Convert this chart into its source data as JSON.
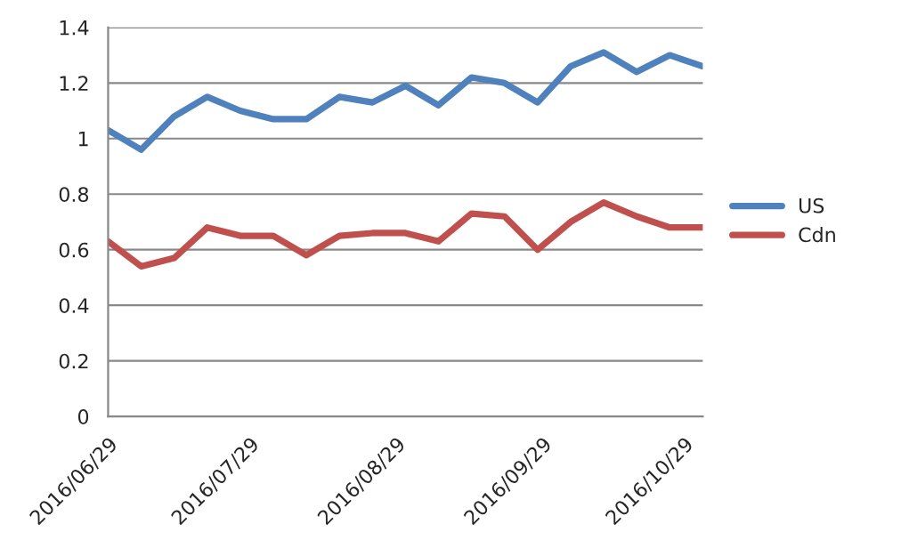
{
  "chart_data": {
    "type": "line",
    "x": [
      "2016-06-29",
      "2016-07-06",
      "2016-07-13",
      "2016-07-20",
      "2016-07-27",
      "2016-08-03",
      "2016-08-10",
      "2016-08-17",
      "2016-08-24",
      "2016-08-31",
      "2016-09-07",
      "2016-09-14",
      "2016-09-21",
      "2016-09-28",
      "2016-10-05",
      "2016-10-12",
      "2016-10-19",
      "2016-10-26",
      "2016-11-02"
    ],
    "series": [
      {
        "name": "US",
        "color": "#4f81bd",
        "values": [
          1.03,
          0.96,
          1.08,
          1.15,
          1.1,
          1.07,
          1.07,
          1.15,
          1.13,
          1.19,
          1.12,
          1.22,
          1.2,
          1.13,
          1.26,
          1.31,
          1.24,
          1.3,
          1.26
        ]
      },
      {
        "name": "Cdn",
        "color": "#c0504d",
        "values": [
          0.63,
          0.54,
          0.57,
          0.68,
          0.65,
          0.65,
          0.58,
          0.65,
          0.66,
          0.66,
          0.63,
          0.73,
          0.72,
          0.6,
          0.7,
          0.77,
          0.72,
          0.68,
          0.68
        ]
      }
    ],
    "xlim": [
      "2016-06-29",
      "2016-11-02"
    ],
    "xticks": [
      {
        "value": "2016-06-29",
        "label": "2016/06/29"
      },
      {
        "value": "2016-07-29",
        "label": "2016/07/29"
      },
      {
        "value": "2016-08-29",
        "label": "2016/08/29"
      },
      {
        "value": "2016-09-29",
        "label": "2016/09/29"
      },
      {
        "value": "2016-10-29",
        "label": "2016/10/29"
      }
    ],
    "ylim": [
      0,
      1.4
    ],
    "yticks": [
      0,
      0.2,
      0.4,
      0.6,
      0.8,
      1,
      1.2,
      1.4
    ],
    "grid": "y",
    "legend": "right",
    "marker": "none",
    "line_style": "solid"
  }
}
